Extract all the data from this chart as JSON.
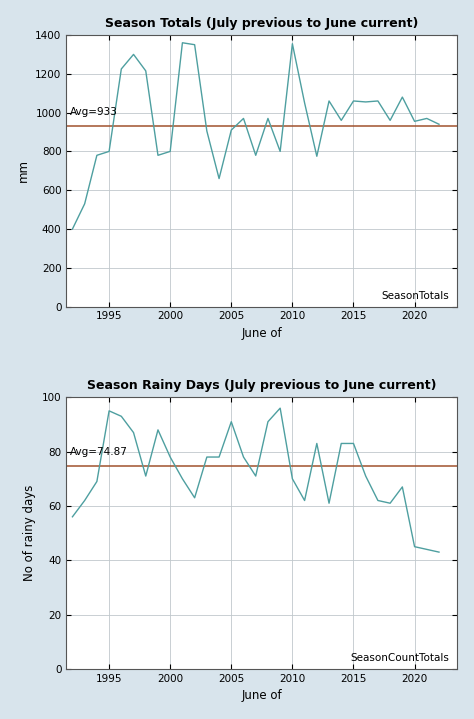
{
  "title1": "Season Totals (July previous to June current)",
  "title2": "Season Rainy Days (July previous to June current)",
  "xlabel": "June of",
  "ylabel1": "mm",
  "ylabel2": "No of rainy days",
  "label1": "SeasonTotals",
  "label2": "SeasonCountTotals",
  "avg1": 933,
  "avg1_label": "Avg=933",
  "avg2": 74.87,
  "avg2_label": "Avg=74.87",
  "years1": [
    1992,
    1993,
    1994,
    1995,
    1996,
    1997,
    1998,
    1999,
    2000,
    2001,
    2002,
    2003,
    2004,
    2005,
    2006,
    2007,
    2008,
    2009,
    2010,
    2011,
    2012,
    2013,
    2014,
    2015,
    2016,
    2017,
    2018,
    2019,
    2020,
    2021,
    2022
  ],
  "values1": [
    400,
    530,
    780,
    800,
    1225,
    1300,
    1215,
    780,
    800,
    1360,
    1350,
    905,
    660,
    910,
    970,
    780,
    970,
    800,
    1355,
    1050,
    775,
    1060,
    960,
    1060,
    1055,
    1060,
    960,
    1080,
    955,
    970,
    940
  ],
  "years2": [
    1992,
    1993,
    1994,
    1995,
    1996,
    1997,
    1998,
    1999,
    2000,
    2001,
    2002,
    2003,
    2004,
    2005,
    2006,
    2007,
    2008,
    2009,
    2010,
    2011,
    2012,
    2013,
    2014,
    2015,
    2016,
    2017,
    2018,
    2019,
    2020,
    2021,
    2022
  ],
  "values2": [
    56,
    62,
    69,
    95,
    93,
    87,
    71,
    88,
    78,
    70,
    63,
    78,
    78,
    91,
    78,
    71,
    91,
    96,
    70,
    62,
    83,
    61,
    83,
    83,
    71,
    62,
    61,
    67,
    45,
    44,
    43
  ],
  "line_color": "#4E9FA0",
  "avg_line_color": "#A0522D",
  "plot_bg": "#FFFFFF",
  "outer_bg": "#D8E4EC",
  "grid_color": "#C0C8CC",
  "spine_color": "#555555",
  "ylim1": [
    0,
    1400
  ],
  "ylim2": [
    0,
    100
  ],
  "yticks1": [
    0,
    200,
    400,
    600,
    800,
    1000,
    1200,
    1400
  ],
  "yticks2": [
    0,
    20,
    40,
    60,
    80,
    100
  ],
  "xticks": [
    1995,
    2000,
    2005,
    2010,
    2015,
    2020
  ],
  "xlim": [
    1991.5,
    2023.5
  ]
}
